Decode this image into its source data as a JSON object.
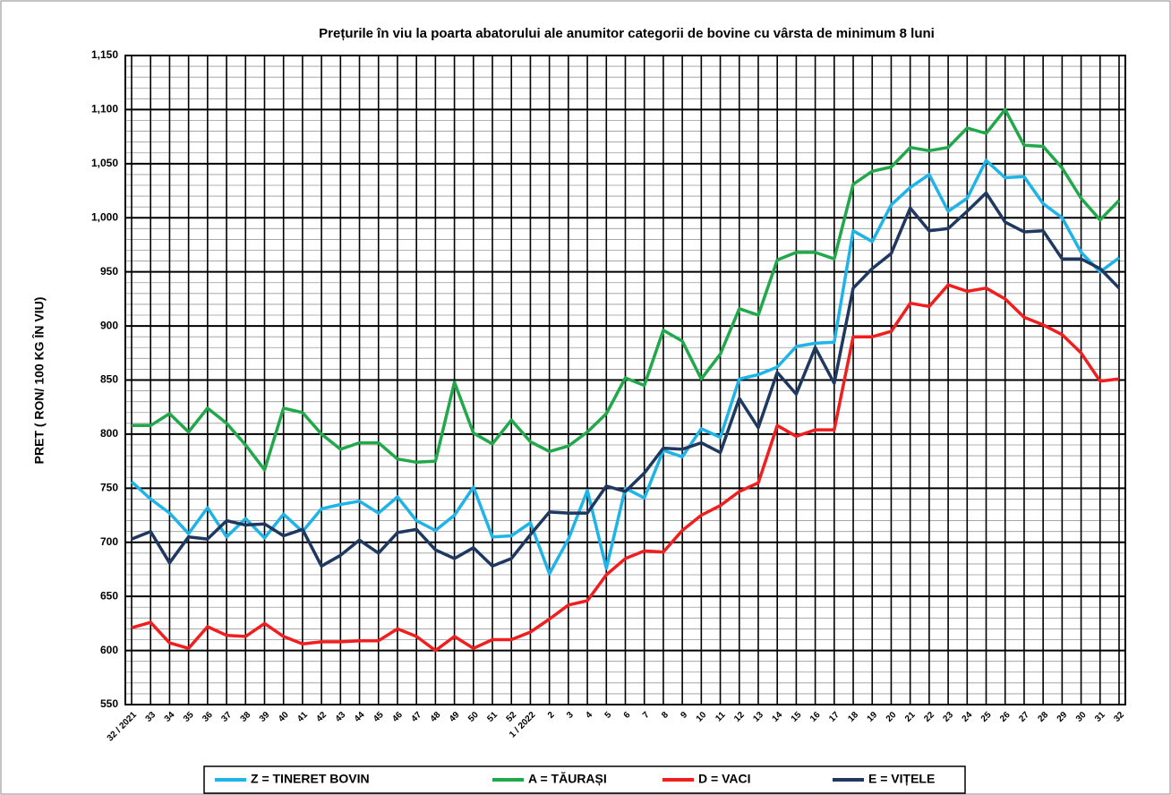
{
  "chart_data": {
    "type": "line",
    "title": "Prețurile în viu la poarta abatorului ale anumitor categorii de  bovine cu vârsta de minimum 8 luni",
    "y_label": "PRET ( RON/ 100 KG ÎN VIU)",
    "categories": [
      "32 / 2021",
      "33",
      "34",
      "35",
      "36",
      "37",
      "38",
      "39",
      "40",
      "41",
      "42",
      "43",
      "44",
      "45",
      "46",
      "47",
      "48",
      "49",
      "50",
      "51",
      "52",
      "1 / 2022",
      "2",
      "3",
      "4",
      "5",
      "6",
      "7",
      "8",
      "9",
      "10",
      "11",
      "12",
      "13",
      "14",
      "15",
      "16",
      "17",
      "18",
      "19",
      "20",
      "21",
      "22",
      "23",
      "24",
      "25",
      "26",
      "27",
      "28",
      "29",
      "30",
      "31",
      "32"
    ],
    "series": [
      {
        "name": "Z  = TINERET BOVIN",
        "color": "#1fb4e8",
        "values": [
          756,
          740,
          727,
          708,
          732,
          705,
          722,
          704,
          726,
          710,
          731,
          735,
          738,
          727,
          742,
          720,
          711,
          725,
          751,
          705,
          706,
          718,
          671,
          703,
          748,
          676,
          750,
          741,
          785,
          779,
          805,
          797,
          851,
          855,
          862,
          881,
          884,
          885,
          988,
          978,
          1012,
          1028,
          1040,
          1006,
          1018,
          1053,
          1037,
          1038,
          1013,
          1000,
          968,
          950,
          963
        ]
      },
      {
        "name": "A = TĂURAȘI",
        "color": "#21a84a",
        "values": [
          808,
          808,
          819,
          802,
          824,
          810,
          790,
          767,
          824,
          820,
          800,
          786,
          792,
          792,
          777,
          774,
          775,
          848,
          801,
          791,
          813,
          793,
          784,
          789,
          802,
          819,
          852,
          845,
          896,
          886,
          851,
          874,
          916,
          910,
          961,
          968,
          968,
          962,
          1031,
          1043,
          1047,
          1065,
          1062,
          1065,
          1083,
          1078,
          1100,
          1067,
          1066,
          1046,
          1018,
          998,
          1016
        ]
      },
      {
        "name": "D = VACI",
        "color": "#f01e1e",
        "values": [
          621,
          626,
          607,
          602,
          622,
          614,
          613,
          625,
          613,
          606,
          608,
          608,
          609,
          609,
          620,
          613,
          600,
          613,
          602,
          610,
          610,
          617,
          629,
          642,
          646,
          670,
          685,
          692,
          691,
          711,
          725,
          734,
          747,
          755,
          808,
          798,
          804,
          804,
          890,
          890,
          895,
          921,
          918,
          938,
          932,
          935,
          925,
          908,
          901,
          892,
          875,
          849,
          851
        ]
      },
      {
        "name": "E = VIȚELE",
        "color": "#1f3860",
        "values": [
          703,
          710,
          681,
          705,
          703,
          720,
          716,
          717,
          706,
          712,
          678,
          688,
          702,
          690,
          709,
          712,
          693,
          685,
          695,
          678,
          685,
          707,
          728,
          727,
          727,
          752,
          747,
          764,
          787,
          786,
          792,
          783,
          833,
          806,
          857,
          837,
          880,
          847,
          935,
          953,
          967,
          1009,
          988,
          990,
          1006,
          1023,
          996,
          987,
          988,
          962,
          962,
          953,
          935
        ]
      }
    ],
    "ylim": [
      550,
      1150
    ],
    "yticks": [
      550,
      600,
      650,
      700,
      750,
      800,
      850,
      900,
      950,
      {
        "value": 1000,
        "label": "1,000"
      },
      {
        "value": 1050,
        "label": "1,050"
      },
      {
        "value": 1100,
        "label": "1,100"
      },
      {
        "value": 1150,
        "label": "1,150"
      }
    ],
    "grid": true,
    "legend": "bottom"
  }
}
